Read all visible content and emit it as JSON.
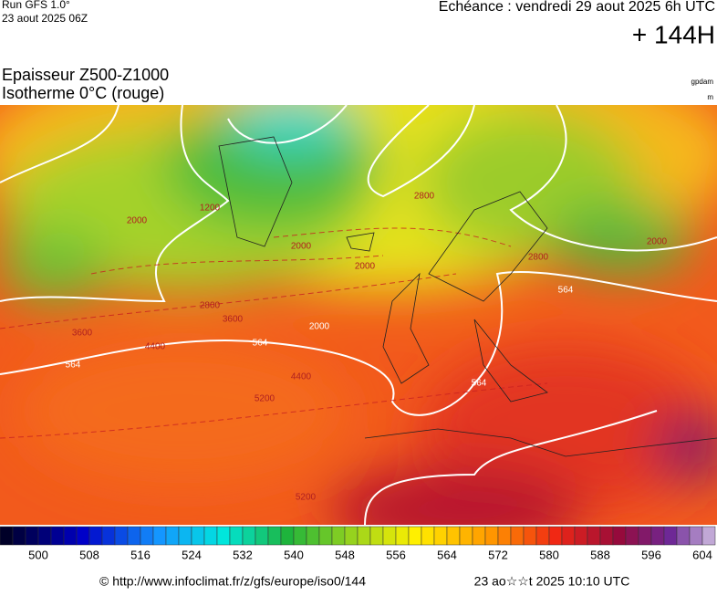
{
  "header": {
    "run": "Run GFS 1.0°",
    "run_date": "23 aout 2025 06Z",
    "echeance": "Echéance : vendredi 29 aout 2025 6h UTC",
    "horizon": "+ 144H"
  },
  "titles": {
    "line1": "Epaisseur Z500-Z1000",
    "line2": "Isotherme 0°C (rouge)",
    "unit1": "gpdam",
    "unit2": "m"
  },
  "map_labels": [
    "564",
    "564",
    "564",
    "564",
    "2000",
    "2000",
    "2000",
    "2000",
    "2800",
    "2800",
    "2800",
    "3600",
    "3600",
    "4400",
    "4400",
    "5200",
    "5200",
    "1200",
    "2000"
  ],
  "colorbar_labels": [
    500,
    508,
    516,
    524,
    532,
    540,
    548,
    556,
    564,
    572,
    580,
    588,
    596,
    604
  ],
  "footer": {
    "source": "© http://www.infoclimat.fr/z/gfs/europe/iso0/144",
    "generated": "23 ao☆☆t 2025 10:10 UTC"
  }
}
